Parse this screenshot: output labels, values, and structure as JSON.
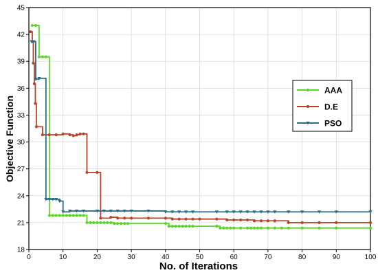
{
  "chart_data": {
    "type": "line",
    "title": "",
    "xlabel": "No. of Iterations",
    "ylabel": "Objective Function",
    "xlim": [
      0,
      100
    ],
    "ylim": [
      18,
      45
    ],
    "xticks": [
      0,
      10,
      20,
      30,
      40,
      50,
      60,
      70,
      80,
      90,
      100
    ],
    "yticks": [
      18,
      21,
      24,
      27,
      30,
      33,
      36,
      39,
      42,
      45
    ],
    "grid": true,
    "legend_position": "right",
    "series": [
      {
        "name": "AAA",
        "color": "#5ed42b",
        "marker": "circle",
        "x": [
          1,
          2,
          3,
          4,
          5,
          6,
          7,
          8,
          9,
          10,
          11,
          12,
          13,
          14,
          15,
          16,
          17,
          18,
          19,
          20,
          21,
          22,
          23,
          24,
          25,
          26,
          27,
          28,
          29,
          40,
          41,
          42,
          43,
          44,
          45,
          46,
          47,
          48,
          55,
          56,
          57,
          58,
          59,
          60,
          62,
          64,
          65,
          66,
          67,
          68,
          70,
          72,
          74,
          76,
          80,
          85,
          90,
          100
        ],
        "y": [
          43,
          43,
          39.5,
          39.5,
          39.5,
          21.8,
          21.8,
          21.8,
          21.8,
          21.8,
          21.8,
          21.8,
          21.8,
          21.8,
          21.8,
          21.8,
          21,
          21,
          21,
          21,
          21,
          21,
          21,
          21,
          20.9,
          20.9,
          20.9,
          20.9,
          20.9,
          20.9,
          20.6,
          20.6,
          20.6,
          20.6,
          20.6,
          20.6,
          20.6,
          20.6,
          20.6,
          20.4,
          20.4,
          20.4,
          20.4,
          20.4,
          20.4,
          20.4,
          20.4,
          20.4,
          20.4,
          20.4,
          20.4,
          20.4,
          20.4,
          20.4,
          20.4,
          20.4,
          20.4,
          20.4
        ]
      },
      {
        "name": "D.E",
        "color": "#b5442a",
        "marker": "circle",
        "x": [
          0.5,
          1,
          1.3,
          1.6,
          1.9,
          2.2,
          4,
          6,
          8,
          10,
          12,
          13,
          14,
          15,
          16,
          17,
          20,
          21,
          24,
          26,
          28,
          30,
          35,
          40,
          42,
          44,
          46,
          48,
          50,
          55,
          58,
          60,
          62,
          64,
          66,
          68,
          70,
          72,
          76,
          80,
          85,
          90,
          100
        ],
        "y": [
          42.3,
          41.2,
          38.8,
          36.5,
          34.3,
          31.7,
          30.8,
          30.8,
          30.8,
          30.9,
          30.8,
          30.7,
          30.8,
          30.9,
          30.9,
          26.6,
          26.6,
          21.5,
          21.6,
          21.5,
          21.5,
          21.5,
          21.5,
          21.5,
          21.4,
          21.4,
          21.4,
          21.4,
          21.4,
          21.4,
          21.3,
          21.3,
          21.3,
          21.3,
          21.2,
          21.2,
          21.2,
          21.2,
          21.0,
          21.0,
          21.0,
          21.0,
          21.0
        ]
      },
      {
        "name": "PSO",
        "color": "#2b6d85",
        "marker": "triangle-down",
        "x": [
          0.8,
          1.4,
          2,
          3,
          5,
          6,
          7,
          8,
          9,
          10,
          12,
          14,
          16,
          20,
          22,
          24,
          26,
          28,
          30,
          35,
          40,
          42,
          44,
          46,
          48,
          55,
          58,
          60,
          62,
          64,
          66,
          68,
          70,
          72,
          76,
          80,
          85,
          90,
          100
        ],
        "y": [
          41.2,
          41.2,
          37.0,
          37.1,
          23.6,
          23.6,
          23.6,
          23.6,
          23.4,
          22.2,
          22.3,
          22.3,
          22.3,
          22.3,
          22.3,
          22.3,
          22.3,
          22.3,
          22.3,
          22.3,
          22.2,
          22.2,
          22.2,
          22.2,
          22.2,
          22.2,
          22.2,
          22.2,
          22.2,
          22.2,
          22.2,
          22.2,
          22.2,
          22.2,
          22.2,
          22.2,
          22.2,
          22.2,
          22.2
        ]
      }
    ]
  }
}
